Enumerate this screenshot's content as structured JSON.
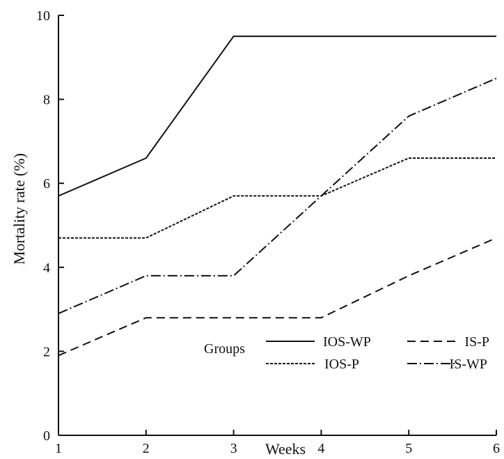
{
  "chart_data": {
    "type": "line",
    "xlabel": "Weeks",
    "ylabel": "Mortality rate (%)",
    "x": [
      1,
      2,
      3,
      4,
      5,
      6
    ],
    "xlim": [
      1,
      6
    ],
    "ylim": [
      0,
      10
    ],
    "yticks": [
      0,
      2,
      4,
      6,
      8,
      10
    ],
    "xticks": [
      1,
      2,
      3,
      4,
      5,
      6
    ],
    "grid": false,
    "legend": {
      "title": "Groups",
      "placement": "lower-right"
    },
    "series": [
      {
        "name": "IOS-WP",
        "style": "solid",
        "values": [
          5.7,
          6.6,
          9.5,
          9.5,
          9.5,
          9.5
        ]
      },
      {
        "name": "IS-P",
        "style": "dashed",
        "values": [
          1.9,
          2.8,
          2.8,
          2.8,
          3.8,
          4.7
        ]
      },
      {
        "name": "IOS-P",
        "style": "dotted",
        "values": [
          4.7,
          4.7,
          5.7,
          5.7,
          6.6,
          6.6
        ]
      },
      {
        "name": "IS-WP",
        "style": "dashdot",
        "values": [
          2.9,
          3.8,
          3.8,
          5.7,
          7.6,
          8.5
        ]
      }
    ]
  }
}
